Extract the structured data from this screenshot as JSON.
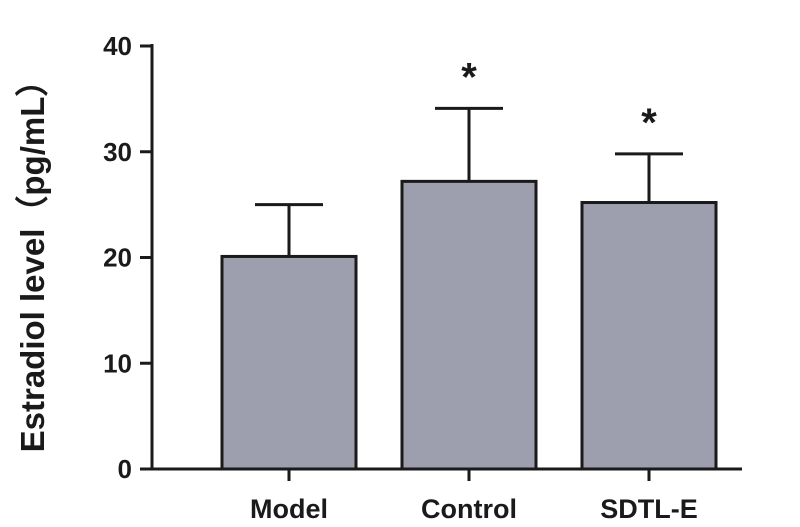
{
  "chart_data": {
    "type": "bar",
    "title": "",
    "xlabel": "",
    "ylabel": "Estradiol level（pg/mL）",
    "ylim": [
      0,
      40
    ],
    "yticks": [
      0,
      10,
      20,
      30,
      40
    ],
    "categories": [
      "Model",
      "Control",
      "SDTL-E"
    ],
    "values": [
      20.1,
      27.2,
      25.2
    ],
    "error_bars": [
      4.9,
      6.9,
      4.6
    ],
    "significance": [
      "",
      "*",
      "*"
    ],
    "grid": false,
    "legend": "none",
    "bar_color": "#9e9fae",
    "axis_color": "#1a1a1a"
  }
}
